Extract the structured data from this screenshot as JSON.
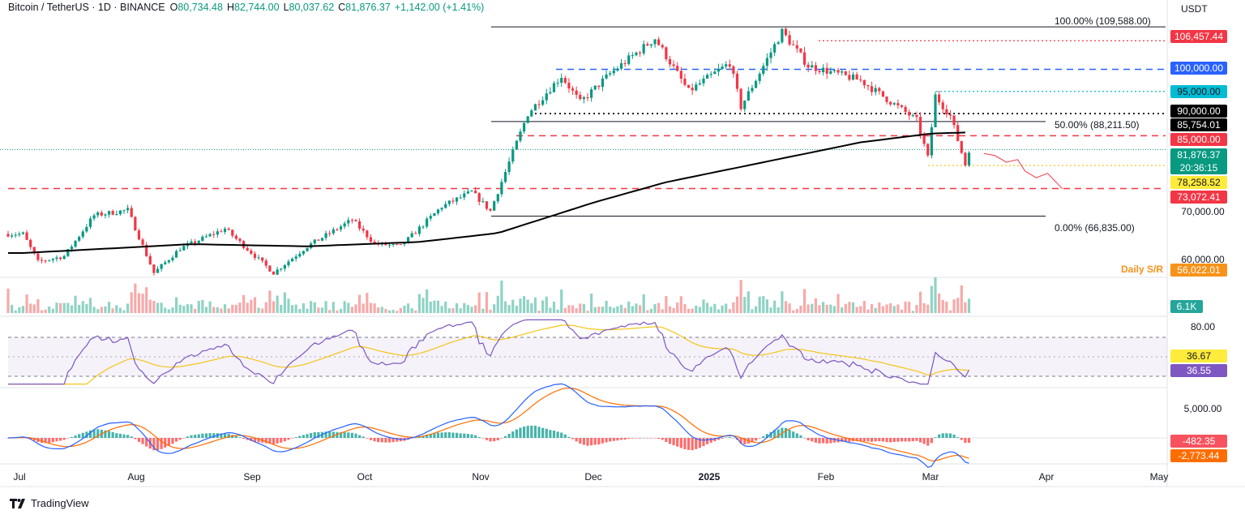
{
  "header": {
    "symbol": "Bitcoin / TetherUS · 1D · BINANCE",
    "o_label": "O",
    "o_value": "80,734.48",
    "h_label": "H",
    "h_value": "82,744.00",
    "l_label": "L",
    "l_value": "80,037.62",
    "c_label": "C",
    "c_value": "81,876.37",
    "change": "+1,142.00 (+1.41%)"
  },
  "axis_unit": "USDT",
  "price_labels": [
    {
      "text": "106,457.44",
      "color": "#f23645"
    },
    {
      "text": "100,000.00",
      "color": "#2962ff"
    },
    {
      "text": "95,000.00",
      "color": "#00bcd4"
    },
    {
      "text": "90,000.00",
      "color": "#000000"
    },
    {
      "text": "85,754.01",
      "color": "#000000"
    },
    {
      "text": "85,000.00",
      "color": "#f23645"
    },
    {
      "text": "81,876.37",
      "color": "#089981"
    },
    {
      "text": "20:36:15",
      "color": "#089981"
    },
    {
      "text": "78,258.52",
      "color": "#ffeb3b"
    },
    {
      "text": "73,072.41",
      "color": "#f23645"
    },
    {
      "text": "56,022.01",
      "color": "#f7931a"
    },
    {
      "text": "6.1K",
      "color": "#26a69a"
    },
    {
      "text": "36.67",
      "color": "#ffeb3b"
    },
    {
      "text": "36.55",
      "color": "#7e57c2"
    },
    {
      "text": "-482.35",
      "color": "#f7525f"
    },
    {
      "text": "-2,773.44",
      "color": "#ff6d00"
    }
  ],
  "scale_labels": {
    "p70k": "70,000.00",
    "p60k": "60,000.00",
    "rsi80": "80.00",
    "macd5k": "5,000.00"
  },
  "fib": {
    "top": "100.00% (109,588.00)",
    "mid": "50.00% (88,211.50)",
    "bottom": "0.00% (66,835.00)"
  },
  "daily_sr": "Daily S/R",
  "x_axis": [
    "Jul",
    "Aug",
    "Sep",
    "Oct",
    "Nov",
    "Dec",
    "2025",
    "Feb",
    "Mar",
    "Apr",
    "May"
  ],
  "brand": "TradingView",
  "colors": {
    "up": "#089981",
    "down": "#f23645",
    "ma": "#000000",
    "rsi": "#7e57c2",
    "rsi_ma": "#f5c518",
    "macd": "#2962ff",
    "signal": "#ff6d00"
  },
  "chart_data": {
    "type": "candlestick",
    "title": "Bitcoin / TetherUS · 1D · BINANCE",
    "ylabel": "USDT",
    "ylim": [
      53000,
      112000
    ],
    "x_range": [
      "2024-06-27",
      "2025-05-03"
    ],
    "levels": [
      {
        "name": "100.00% (109,588.00)",
        "value": 109588
      },
      {
        "name": "50.00% (88,211.50)",
        "value": 88211.5
      },
      {
        "name": "0.00% (66,835.00)",
        "value": 66835
      },
      {
        "value": 106457.44
      },
      {
        "value": 100000
      },
      {
        "value": 95000
      },
      {
        "value": 90000
      },
      {
        "value": 85000
      },
      {
        "value": 78258.52
      },
      {
        "value": 73072.41
      }
    ],
    "price_keypoints": [
      [
        "2024-07-01",
        62800
      ],
      [
        "2024-07-05",
        56500
      ],
      [
        "2024-07-12",
        57800
      ],
      [
        "2024-07-20",
        67000
      ],
      [
        "2024-07-29",
        68200
      ],
      [
        "2024-08-05",
        54000
      ],
      [
        "2024-08-12",
        59500
      ],
      [
        "2024-08-24",
        64000
      ],
      [
        "2024-09-06",
        54000
      ],
      [
        "2024-09-15",
        60000
      ],
      [
        "2024-09-27",
        66000
      ],
      [
        "2024-10-03",
        60600
      ],
      [
        "2024-10-10",
        60000
      ],
      [
        "2024-10-21",
        69000
      ],
      [
        "2024-10-29",
        72300
      ],
      [
        "2024-11-03",
        68000
      ],
      [
        "2024-11-13",
        90000
      ],
      [
        "2024-11-22",
        98500
      ],
      [
        "2024-11-27",
        92500
      ],
      [
        "2024-12-05",
        99000
      ],
      [
        "2024-12-17",
        107000
      ],
      [
        "2024-12-26",
        95000
      ],
      [
        "2025-01-06",
        101500
      ],
      [
        "2025-01-09",
        91500
      ],
      [
        "2025-01-20",
        108500
      ],
      [
        "2025-01-27",
        100800
      ],
      [
        "2025-02-10",
        97500
      ],
      [
        "2025-02-25",
        88500
      ],
      [
        "2025-02-28",
        80000
      ],
      [
        "2025-03-02",
        94000
      ],
      [
        "2025-03-06",
        89500
      ],
      [
        "2025-03-10",
        78500
      ],
      [
        "2025-03-11",
        81876.37
      ]
    ],
    "ma200_keypoints": [
      [
        "2024-07-01",
        58500
      ],
      [
        "2024-08-15",
        60500
      ],
      [
        "2024-09-15",
        60000
      ],
      [
        "2024-10-15",
        61000
      ],
      [
        "2024-11-05",
        63000
      ],
      [
        "2024-12-01",
        70000
      ],
      [
        "2024-12-20",
        74500
      ],
      [
        "2025-01-15",
        79000
      ],
      [
        "2025-02-10",
        83500
      ],
      [
        "2025-03-01",
        85500
      ],
      [
        "2025-03-11",
        85754.01
      ]
    ],
    "projection_keypoints": [
      [
        "2025-03-15",
        81000
      ],
      [
        "2025-03-18",
        80500
      ],
      [
        "2025-03-21",
        79000
      ],
      [
        "2025-03-24",
        79600
      ],
      [
        "2025-03-26",
        77000
      ],
      [
        "2025-03-29",
        75500
      ],
      [
        "2025-04-01",
        76500
      ],
      [
        "2025-04-05",
        73000
      ]
    ],
    "volume_last": "6.1K",
    "rsi": {
      "overbought": 70,
      "oversold": 30,
      "ticks": [
        80
      ],
      "last": 36.55,
      "ma_last": 36.67
    },
    "macd": {
      "histogram_last": -482.35,
      "signal_last": -2773.44,
      "ticks": [
        5000
      ]
    }
  }
}
